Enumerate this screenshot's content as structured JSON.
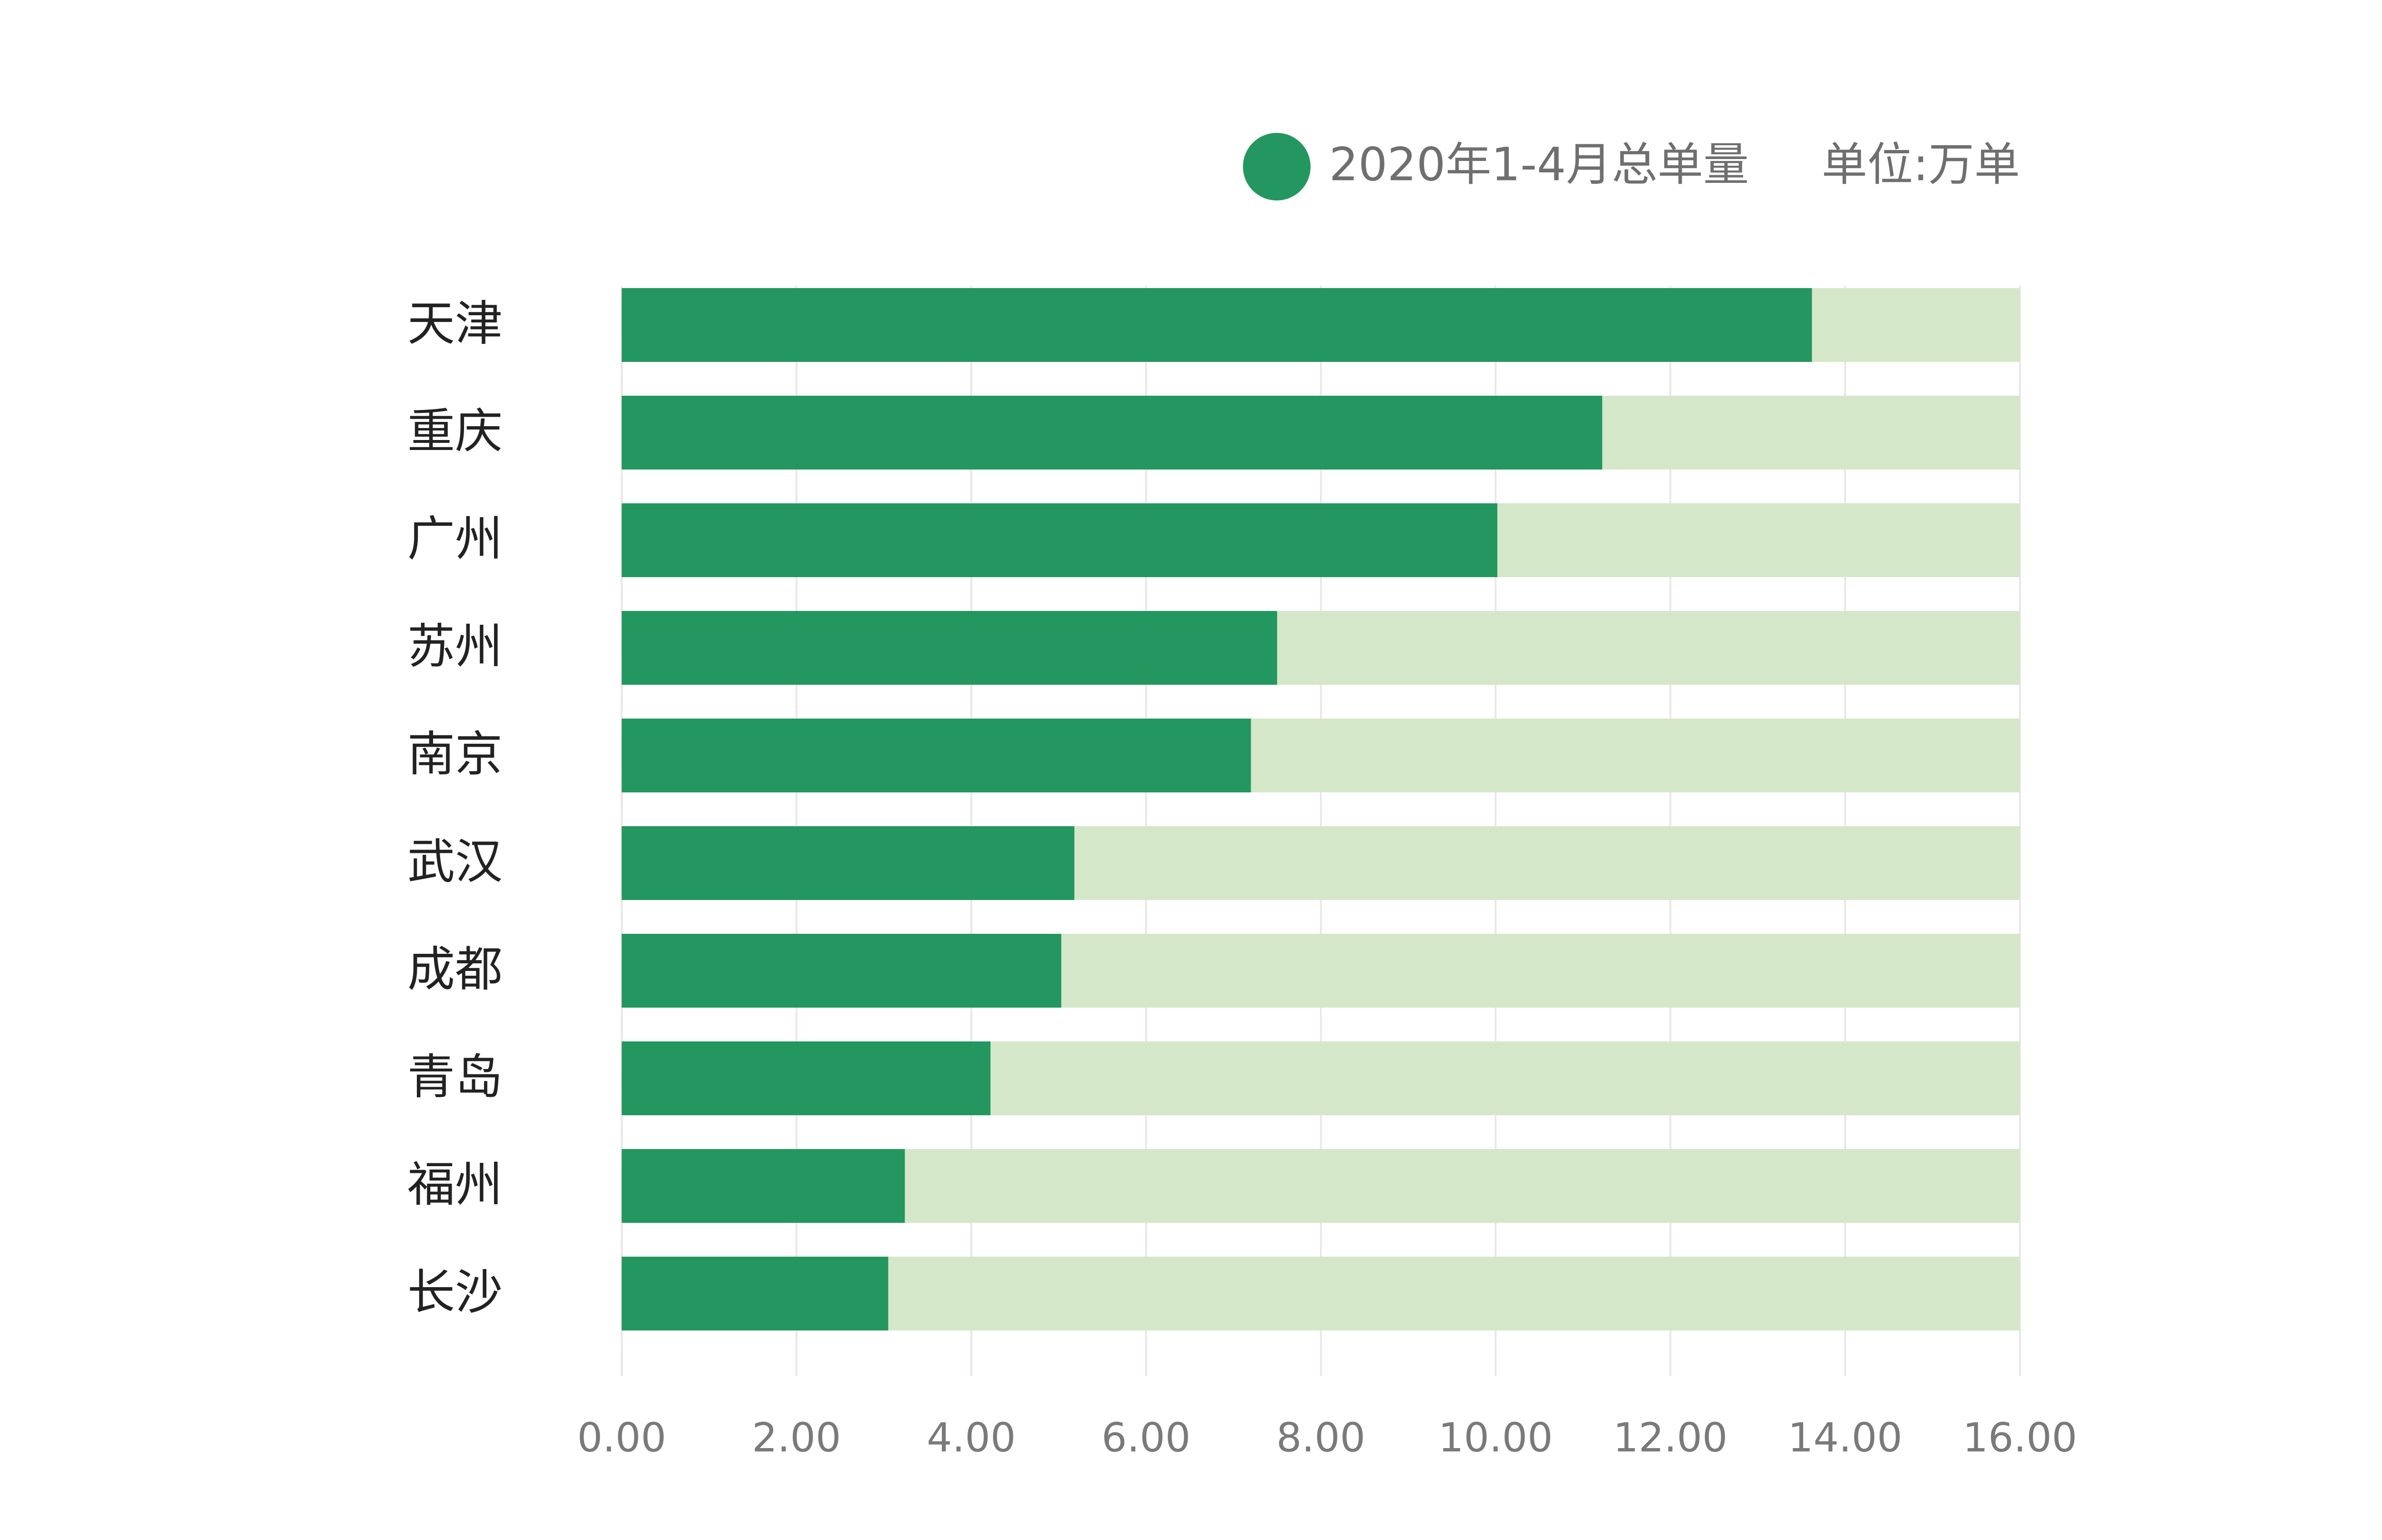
{
  "chart_data": {
    "type": "bar",
    "orientation": "horizontal",
    "categories": [
      "天津",
      "重庆",
      "广州",
      "苏州",
      "南京",
      "武汉",
      "成都",
      "青岛",
      "福州",
      "长沙"
    ],
    "series": [
      {
        "name": "2020年1-4月总单量",
        "color": "#23975f",
        "values": [
          13.62,
          11.22,
          10.02,
          7.5,
          7.2,
          5.18,
          5.03,
          4.22,
          3.24,
          3.05
        ]
      }
    ],
    "xlim": [
      0,
      16
    ],
    "xticks": [
      0,
      2,
      4,
      6,
      8,
      10,
      12,
      14,
      16
    ],
    "xtick_labels": [
      "0.00",
      "2.00",
      "4.00",
      "6.00",
      "8.00",
      "10.00",
      "12.00",
      "14.00",
      "16.00"
    ],
    "unit_label": "单位:万单",
    "legend": {
      "placement": "top-right",
      "label": "2020年1-4月总单量"
    },
    "background_track_color": "#d4e8c9",
    "grid": "vertical",
    "grid_color": "#ece6e6"
  }
}
